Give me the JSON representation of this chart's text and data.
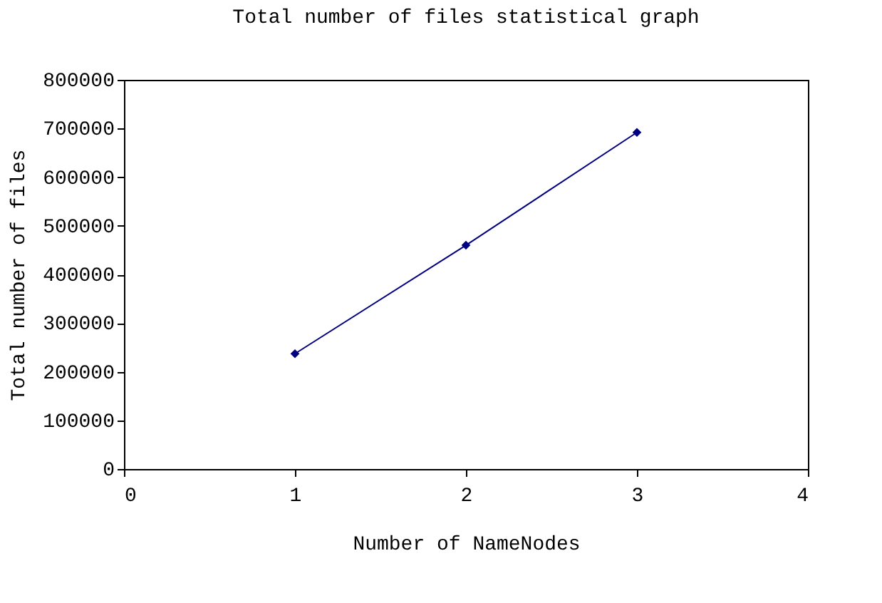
{
  "chart_data": {
    "type": "line",
    "title": "Total number of files statistical graph",
    "xlabel": "Number of NameNodes",
    "ylabel": "Total number of files",
    "x": [
      1,
      2,
      3
    ],
    "series": [
      {
        "color": "#000080",
        "values": [
          237000,
          460000,
          692000
        ]
      }
    ],
    "xlim": [
      0,
      4
    ],
    "xticks": [
      0,
      1,
      2,
      3,
      4
    ],
    "ylim": [
      0,
      800000
    ],
    "yticks": [
      0,
      100000,
      200000,
      300000,
      400000,
      500000,
      600000,
      700000,
      800000
    ],
    "grid": false,
    "marker": "diamond",
    "line_style": "solid"
  }
}
